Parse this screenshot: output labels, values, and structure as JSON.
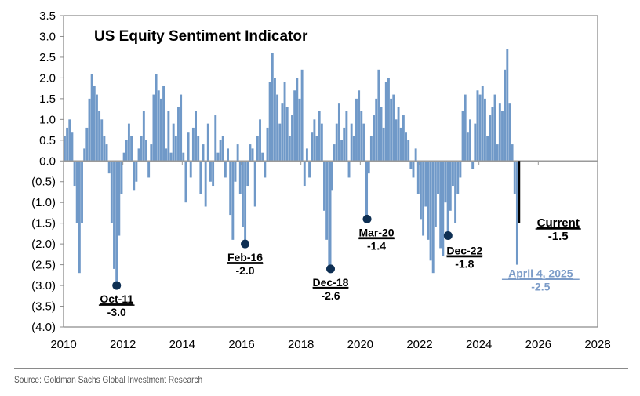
{
  "chart_data": {
    "type": "bar",
    "title": "US Equity Sentiment Indicator",
    "xlabel": "",
    "ylabel": "",
    "xlim": [
      2010,
      2028
    ],
    "ylim": [
      -4.0,
      3.5
    ],
    "x_ticks": [
      "2010",
      "2012",
      "2014",
      "2016",
      "2018",
      "2020",
      "2022",
      "2024",
      "2026",
      "2028"
    ],
    "x_tick_values": [
      2010,
      2012,
      2014,
      2016,
      2018,
      2020,
      2022,
      2024,
      2026,
      2028
    ],
    "y_ticks": [
      "3.5",
      "3.0",
      "2.5",
      "2.0",
      "1.5",
      "1.0",
      "0.5",
      "0.0",
      "(0.5)",
      "(1.0)",
      "(1.5)",
      "(2.0)",
      "(2.5)",
      "(3.0)",
      "(3.5)",
      "(4.0)"
    ],
    "y_tick_values": [
      3.5,
      3.0,
      2.5,
      2.0,
      1.5,
      1.0,
      0.5,
      0.0,
      -0.5,
      -1.0,
      -1.5,
      -2.0,
      -2.5,
      -3.0,
      -3.5,
      -4.0
    ],
    "grid": false,
    "series": [
      {
        "name": "US Equity Sentiment Indicator",
        "color": "#7099C8",
        "start": 2010.0,
        "step_years": 0.0833333,
        "values": [
          0.6,
          0.8,
          1.0,
          0.7,
          -0.6,
          -1.5,
          -2.7,
          -1.5,
          0.3,
          0.8,
          1.5,
          2.1,
          1.8,
          1.6,
          1.2,
          1.0,
          0.6,
          0.4,
          -0.3,
          -1.5,
          -2.6,
          -3.0,
          -1.8,
          -0.8,
          0.2,
          0.5,
          0.9,
          0.6,
          -0.7,
          -0.5,
          0.3,
          0.6,
          1.2,
          0.5,
          -0.4,
          0.4,
          1.6,
          2.1,
          1.7,
          1.5,
          1.8,
          0.3,
          1.2,
          0.2,
          0.9,
          0.6,
          1.3,
          1.6,
          0.2,
          -1.0,
          0.7,
          -0.4,
          0.8,
          1.2,
          0.6,
          -0.8,
          0.4,
          -1.1,
          0.9,
          -0.5,
          -0.6,
          1.1,
          0.2,
          0.5,
          0.6,
          -0.4,
          0.3,
          -1.3,
          -1.9,
          -0.5,
          0.4,
          -0.8,
          -1.6,
          -2.0,
          -0.6,
          0.4,
          0.3,
          -1.1,
          0.6,
          1.0,
          0.2,
          -0.4,
          0.8,
          1.9,
          2.6,
          2.0,
          1.6,
          0.9,
          1.4,
          1.9,
          1.3,
          0.6,
          1.1,
          1.7,
          2.0,
          1.5,
          2.2,
          -0.6,
          0.3,
          -0.4,
          0.7,
          1.0,
          0.6,
          1.2,
          0.9,
          -1.2,
          -1.9,
          -2.6,
          -0.7,
          0.4,
          0.9,
          1.4,
          0.5,
          0.8,
          1.2,
          -0.4,
          0.9,
          0.6,
          1.5,
          1.7,
          1.2,
          0.9,
          -1.4,
          -0.3,
          0.6,
          1.1,
          1.5,
          2.2,
          1.3,
          0.8,
          1.9,
          2.0,
          1.5,
          1.6,
          1.0,
          1.3,
          0.8,
          1.1,
          0.7,
          0.5,
          -0.2,
          -0.4,
          0.3,
          -0.8,
          -1.4,
          -1.8,
          -1.1,
          -1.9,
          -2.4,
          -2.7,
          -1.6,
          -0.8,
          -2.1,
          -2.3,
          -1.0,
          -1.8,
          -1.2,
          -0.6,
          -1.5,
          -0.8,
          -0.4,
          1.2,
          1.6,
          0.7,
          1.0,
          -0.2,
          0.9,
          1.7,
          1.6,
          1.8,
          1.5,
          0.6,
          1.1,
          1.3,
          1.6,
          0.4,
          1.4,
          1.2,
          2.2,
          2.7,
          1.4,
          0.4,
          -0.8,
          -2.5
        ]
      },
      {
        "name": "Current",
        "color": "#000000",
        "x": 2025.35,
        "value": -1.5
      }
    ],
    "annotations": [
      {
        "label": "Oct-11",
        "value_label": "-3.0",
        "x": 2011.79,
        "y": -3.0,
        "marker": true,
        "color": "#0E2F53",
        "highlight": false
      },
      {
        "label": "Feb-16",
        "value_label": "-2.0",
        "x": 2016.12,
        "y": -2.0,
        "marker": true,
        "color": "#0E2F53",
        "highlight": false
      },
      {
        "label": "Dec-18",
        "value_label": "-2.6",
        "x": 2019.0,
        "y": -2.6,
        "marker": true,
        "color": "#0E2F53",
        "highlight": false
      },
      {
        "label": "Mar-20",
        "value_label": "-1.4",
        "x": 2020.23,
        "y": -1.4,
        "marker": true,
        "color": "#0E2F53",
        "highlight": false
      },
      {
        "label": "Dec-22",
        "value_label": "-1.8",
        "x": 2022.96,
        "y": -1.8,
        "marker": true,
        "color": "#0E2F53",
        "highlight": false
      },
      {
        "label": "April 4, 2025",
        "value_label": "-2.5",
        "x": 2025.26,
        "y": -2.5,
        "marker": false,
        "color": "#7C9CC8",
        "highlight": true
      },
      {
        "label": "Current",
        "value_label": "-1.5",
        "x": 2025.35,
        "y": -1.5,
        "marker": false,
        "color": "#000000",
        "highlight": false
      }
    ],
    "legend": "none"
  },
  "footer": {
    "source": "Source: Goldman Sachs Global Investment Research"
  }
}
